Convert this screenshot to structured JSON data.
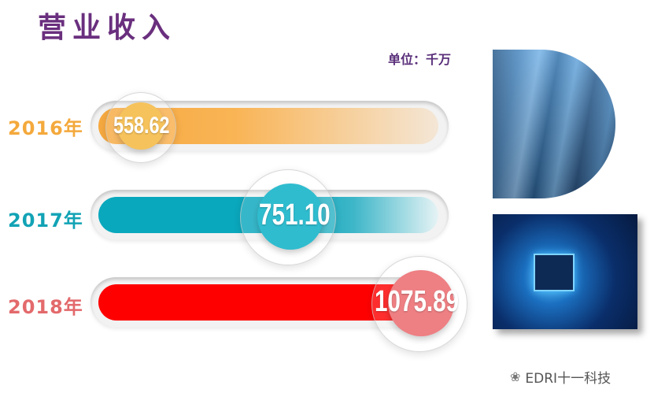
{
  "title": "营业收入",
  "unit_label": "单位：千万",
  "watermark": {
    "icon": "wechat-icon",
    "text": "EDRI十一科技"
  },
  "chart_data": {
    "type": "bar",
    "orientation": "horizontal",
    "title": "营业收入",
    "unit": "单位：千万",
    "categories": [
      "2016年",
      "2017年",
      "2018年"
    ],
    "values": [
      558.62,
      751.1,
      1075.89
    ],
    "value_labels": [
      "558.62",
      "751.10",
      "1075.89"
    ],
    "colors": [
      "#f7a940",
      "#0aa8bd",
      "#ff0000"
    ],
    "label_colors": [
      "#f4a93c",
      "#12a3b5",
      "#e36a6c"
    ],
    "bubble_colors": [
      "#f6c25b",
      "#2fbccf",
      "#ee7f83"
    ]
  }
}
